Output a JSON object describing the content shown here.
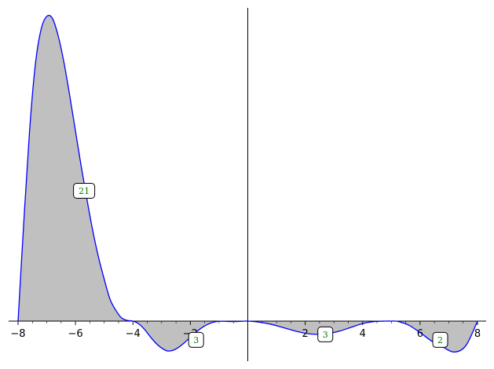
{
  "chart_data": {
    "type": "area",
    "title": "",
    "xlabel": "",
    "ylabel": "",
    "xlim": [
      -8,
      8
    ],
    "ylim": [
      -1.4,
      13.9
    ],
    "grid": false,
    "legend": "none",
    "x_ticks": [
      -8,
      -6,
      -4,
      -2,
      2,
      4,
      6,
      8
    ],
    "x_tick_labels": [
      "−8",
      "−6",
      "−4",
      "−2",
      "2",
      "4",
      "6",
      "8"
    ],
    "series": [
      {
        "x": [
          -8,
          -7.8,
          -7.6,
          -7.4,
          -7.2,
          -7.0,
          -6.8,
          -6.6,
          -6.4,
          -6.2,
          -6.0,
          -5.8,
          -5.6,
          -5.4,
          -5.2,
          -5.0,
          -4.8,
          -4.6,
          -4.4,
          -4.2,
          -4.0,
          -3.8,
          -3.6,
          -3.4,
          -3.2,
          -3.0,
          -2.8,
          -2.6,
          -2.4,
          -2.2,
          -2.0,
          -1.8,
          -1.6,
          -1.4,
          -1.2,
          -1.0,
          -0.8,
          -0.6,
          -0.4,
          -0.2,
          0,
          0.4,
          0.8,
          1.2,
          1.6,
          2.0,
          2.4,
          2.8,
          3.2,
          3.6,
          4.0,
          4.4,
          4.8,
          5.0,
          5.2,
          5.6,
          6.0,
          6.4,
          6.8,
          7.2,
          7.6,
          8.0
        ],
        "y": [
          0,
          4.5,
          8.6,
          11.6,
          13.2,
          13.8,
          13.7,
          12.9,
          11.7,
          10.2,
          8.6,
          7.0,
          5.5,
          4.1,
          2.9,
          1.9,
          1.0,
          0.5,
          0.15,
          0.03,
          0,
          -0.12,
          -0.37,
          -0.7,
          -1.0,
          -1.22,
          -1.35,
          -1.32,
          -1.18,
          -0.97,
          -0.73,
          -0.5,
          -0.3,
          -0.15,
          -0.05,
          -0.01,
          -0.01,
          -0.02,
          -0.02,
          -0.01,
          0,
          -0.05,
          -0.14,
          -0.28,
          -0.43,
          -0.55,
          -0.6,
          -0.57,
          -0.45,
          -0.28,
          -0.11,
          -0.02,
          0,
          0,
          -0.01,
          -0.18,
          -0.52,
          -0.9,
          -1.18,
          -1.4,
          -1.1,
          0
        ],
        "color": "#0000ff",
        "fill": "#c0c0c0"
      }
    ],
    "annotations": [
      {
        "text": "21",
        "x": -5.7,
        "y": 5.9
      },
      {
        "text": "3",
        "x": -1.8,
        "y": -0.85
      },
      {
        "text": "3",
        "x": 2.7,
        "y": -0.6
      },
      {
        "text": "2",
        "x": 6.7,
        "y": -0.85
      }
    ]
  }
}
